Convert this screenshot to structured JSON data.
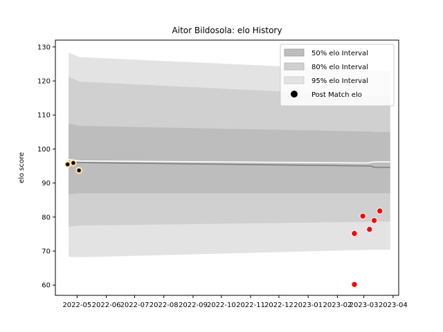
{
  "chart_data": {
    "type": "line",
    "title": "Aitor Bildosola: elo History",
    "xlabel": "",
    "ylabel": "elo score",
    "xlim": [
      "2022-04-08",
      "2023-04-07"
    ],
    "ylim": [
      57,
      132
    ],
    "x_ticks": [
      "2022-05",
      "2022-06",
      "2022-07",
      "2022-08",
      "2022-09",
      "2022-10",
      "2022-11",
      "2022-12",
      "2023-01",
      "2023-02",
      "2023-03",
      "2023-04"
    ],
    "y_ticks": [
      60,
      70,
      80,
      90,
      100,
      110,
      120,
      130
    ],
    "grid": false,
    "legend_position": "top-right",
    "colors": {
      "band95": "#e3e3e3",
      "band80": "#d0d0d0",
      "band50": "#bdbdbd",
      "mean_line": "#808080",
      "early_points": "#ffa500",
      "late_points": "#ff0000",
      "point_edge": "#ffffff"
    },
    "legend": [
      {
        "label": "50% elo Interval",
        "kind": "band50"
      },
      {
        "label": "80% elo Interval",
        "kind": "band80"
      },
      {
        "label": "95% elo Interval",
        "kind": "band95"
      },
      {
        "label": "Post Match elo",
        "kind": "marker"
      }
    ],
    "band_dates": [
      "2022-04-22",
      "2022-05-04",
      "2023-03-09",
      "2023-03-12",
      "2023-03-29"
    ],
    "bands": {
      "p95": {
        "upper": [
          128.3,
          127.0,
          123.1,
          123.0,
          123.0
        ],
        "lower": [
          68.3,
          68.2,
          70.4,
          70.4,
          70.4
        ]
      },
      "p80": {
        "upper": [
          121.2,
          119.8,
          115.6,
          115.5,
          115.5
        ],
        "lower": [
          77.2,
          77.5,
          78.6,
          78.7,
          78.7
        ]
      },
      "p50": {
        "upper": [
          107.4,
          106.8,
          105.1,
          105.0,
          105.0
        ],
        "lower": [
          86.7,
          87.0,
          87.0,
          87.0,
          87.0
        ]
      }
    },
    "mean_line": {
      "dates": [
        "2022-04-22",
        "2022-05-04",
        "2023-03-09",
        "2023-03-12",
        "2023-03-29"
      ],
      "values": [
        96.1,
        96.0,
        95.0,
        94.6,
        94.6
      ]
    },
    "upper_line": {
      "dates": [
        "2022-04-22",
        "2022-05-04",
        "2023-03-05",
        "2023-03-12",
        "2023-03-29"
      ],
      "values": [
        96.9,
        96.5,
        95.9,
        96.2,
        96.2
      ]
    },
    "post_match_early": {
      "dates": [
        "2022-04-21",
        "2022-04-27",
        "2022-05-03"
      ],
      "values": [
        95.5,
        95.9,
        93.7
      ]
    },
    "post_match_late": {
      "dates": [
        "2023-02-19",
        "2023-02-19",
        "2023-02-28",
        "2023-03-07",
        "2023-03-12",
        "2023-03-18"
      ],
      "values": [
        75.2,
        60.2,
        80.3,
        76.4,
        79.0,
        81.8
      ]
    }
  }
}
